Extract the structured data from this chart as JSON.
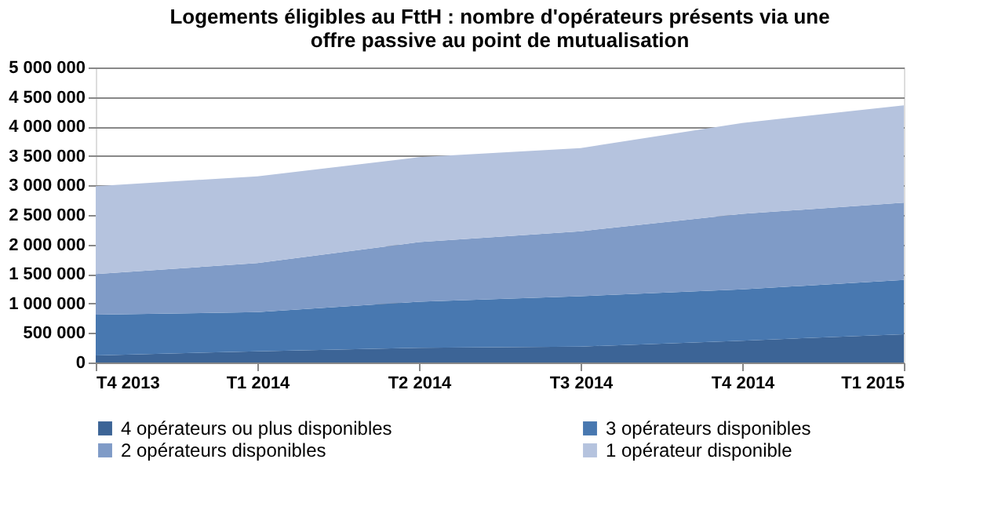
{
  "chart_data": {
    "type": "area",
    "title": "Logements éligibles au FttH : nombre d'opérateurs présents via une\noffre passive au point de mutualisation",
    "categories": [
      "T4 2013",
      "T1 2014",
      "T2 2014",
      "T3 2014",
      "T4 2014",
      "T1 2015"
    ],
    "stacked": true,
    "series": [
      {
        "name": "4 opérateurs ou plus disponibles",
        "color": "#3c6496",
        "values": [
          120000,
          190000,
          250000,
          270000,
          370000,
          480000
        ]
      },
      {
        "name": "3 opérateurs disponibles",
        "color": "#4878b0",
        "values": [
          690000,
          665000,
          780000,
          855000,
          870000,
          920000
        ]
      },
      {
        "name": "2 opérateurs disponibles",
        "color": "#7f9bc7",
        "values": [
          690000,
          830000,
          1010000,
          1100000,
          1280000,
          1310000
        ]
      },
      {
        "name": "1 opérateur disponible",
        "color": "#b5c3de",
        "values": [
          1490000,
          1470000,
          1440000,
          1410000,
          1540000,
          1650000
        ]
      }
    ],
    "ylim": [
      0,
      5000000
    ],
    "yticks": [
      {
        "value": 0,
        "label": "0"
      },
      {
        "value": 500000,
        "label": "500 000"
      },
      {
        "value": 1000000,
        "label": "1 000 000"
      },
      {
        "value": 1500000,
        "label": "1 500 000"
      },
      {
        "value": 2000000,
        "label": "2 000 000"
      },
      {
        "value": 2500000,
        "label": "2 500 000"
      },
      {
        "value": 3000000,
        "label": "3 000 000"
      },
      {
        "value": 3500000,
        "label": "3 500 000"
      },
      {
        "value": 4000000,
        "label": "4 000 000"
      },
      {
        "value": 4500000,
        "label": "4 500 000"
      },
      {
        "value": 5000000,
        "label": "5 000 000"
      }
    ],
    "grid": "y",
    "legend": "bottom"
  }
}
